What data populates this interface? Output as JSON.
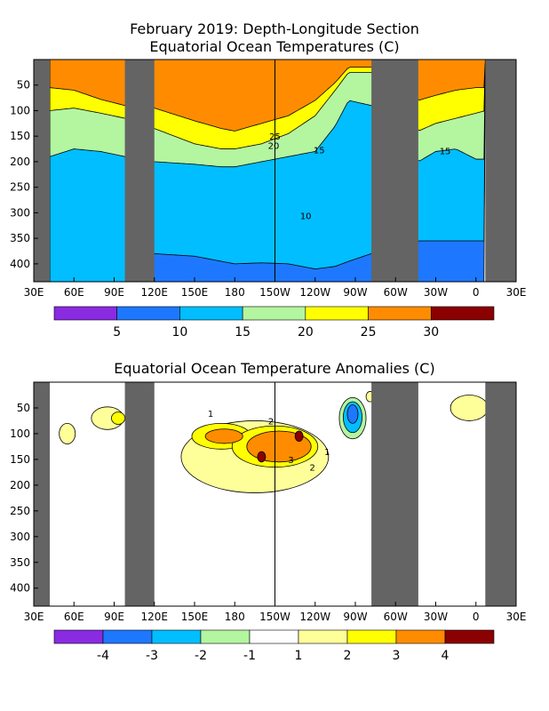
{
  "chart_data": [
    {
      "type": "heatmap",
      "title": "February 2019: Depth-Longitude Section",
      "subtitle": "Equatorial Ocean Temperatures (C)",
      "xlabel": "",
      "ylabel": "",
      "x_ticks": [
        "30E",
        "60E",
        "90E",
        "120E",
        "150E",
        "180",
        "150W",
        "120W",
        "90W",
        "60W",
        "30W",
        "0",
        "30E"
      ],
      "x_range_deg_east": [
        30,
        390
      ],
      "y_ticks": [
        50,
        100,
        150,
        200,
        250,
        300,
        350,
        400
      ],
      "y_range_m": [
        0,
        435
      ],
      "land_gaps_deg_east": [
        [
          30,
          42
        ],
        [
          98,
          120
        ],
        [
          282,
          317
        ],
        [
          367,
          390
        ]
      ],
      "colorbar": {
        "labels": [
          "5",
          "10",
          "15",
          "20",
          "25",
          "30"
        ],
        "bins": [
          0,
          5,
          10,
          15,
          20,
          25,
          30,
          35
        ],
        "colors": [
          "#8a2be2",
          "#1e78ff",
          "#00beff",
          "#b4f5a0",
          "#ffff00",
          "#ff8c00",
          "#8b0000"
        ]
      },
      "contour_labels": [
        "25",
        "20",
        "15",
        "15",
        "10"
      ],
      "layers": [
        {
          "range": "25-30",
          "depth_bottom": {
            "lon": [
              42,
              60,
              80,
              98,
              120,
              150,
              170,
              180,
              200,
              220,
              240,
              255,
              265,
              282,
              317,
              330,
              345,
              360,
              367
            ],
            "depth_m": [
              55,
              60,
              78,
              90,
              95,
              120,
              135,
              140,
              125,
              110,
              80,
              45,
              15,
              15,
              80,
              70,
              60,
              55,
              55
            ]
          }
        },
        {
          "range": "20-25",
          "depth_bottom": {
            "lon": [
              42,
              60,
              80,
              98,
              120,
              150,
              170,
              180,
              200,
              220,
              240,
              255,
              265,
              282,
              317,
              330,
              345,
              360,
              367
            ],
            "depth_m": [
              100,
              95,
              105,
              115,
              135,
              165,
              175,
              175,
              165,
              145,
              110,
              60,
              25,
              25,
              140,
              125,
              115,
              105,
              100
            ]
          }
        },
        {
          "range": "15-20",
          "depth_bottom": {
            "lon": [
              42,
              60,
              80,
              98,
              120,
              150,
              170,
              180,
              200,
              220,
              240,
              255,
              265,
              282,
              317,
              330,
              345,
              360,
              367
            ],
            "depth_m": [
              190,
              175,
              180,
              190,
              200,
              205,
              210,
              210,
              200,
              190,
              180,
              130,
              80,
              90,
              200,
              180,
              175,
              195,
              195
            ]
          }
        },
        {
          "range": "10-15",
          "depth_bottom": {
            "lon": [
              42,
              60,
              80,
              98,
              120,
              150,
              170,
              180,
              200,
              220,
              240,
              255,
              265,
              282,
              317,
              330,
              345,
              360,
              367
            ],
            "depth_m": [
              435,
              435,
              435,
              435,
              380,
              385,
              395,
              400,
              398,
              400,
              410,
              405,
              395,
              380,
              355,
              355,
              355,
              355,
              355
            ]
          }
        },
        {
          "range": "5-10",
          "depth_bottom": {
            "lon": [
              42,
              367
            ],
            "depth_m": [
              435,
              435
            ]
          }
        }
      ]
    },
    {
      "type": "heatmap",
      "title": "Equatorial Ocean Temperature Anomalies (C)",
      "xlabel": "",
      "ylabel": "",
      "x_ticks": [
        "30E",
        "60E",
        "90E",
        "120E",
        "150E",
        "180",
        "150W",
        "120W",
        "90W",
        "60W",
        "30W",
        "0",
        "30E"
      ],
      "x_range_deg_east": [
        30,
        390
      ],
      "y_ticks": [
        50,
        100,
        150,
        200,
        250,
        300,
        350,
        400
      ],
      "y_range_m": [
        0,
        435
      ],
      "land_gaps_deg_east": [
        [
          30,
          42
        ],
        [
          98,
          120
        ],
        [
          282,
          317
        ],
        [
          367,
          390
        ]
      ],
      "colorbar": {
        "labels": [
          "-4",
          "-3",
          "-2",
          "-1",
          "1",
          "2",
          "3",
          "4"
        ],
        "bins": [
          -5,
          -4,
          -3,
          -2,
          -1,
          1,
          2,
          3,
          4,
          5
        ],
        "colors": [
          "#8a2be2",
          "#1e78ff",
          "#00beff",
          "#b4f5a0",
          "#ffffff",
          "#ffff99",
          "#ffff00",
          "#ff8c00",
          "#8b0000"
        ]
      },
      "contour_labels": [
        "2",
        "3",
        "2",
        "1",
        "1"
      ],
      "anomaly_regions": [
        {
          "value_class": "1 to 2",
          "lon": 195,
          "depth_m": 145,
          "rx_deg": 55,
          "ry_m": 70
        },
        {
          "value_class": "1 to 2",
          "lon": 85,
          "depth_m": 70,
          "rx_deg": 12,
          "ry_m": 22
        },
        {
          "value_class": "1 to 2",
          "lon": 355,
          "depth_m": 50,
          "rx_deg": 14,
          "ry_m": 25
        },
        {
          "value_class": "1 to 2",
          "lon": 55,
          "depth_m": 100,
          "rx_deg": 6,
          "ry_m": 20
        },
        {
          "value_class": "2 to 3",
          "lon": 170,
          "depth_m": 105,
          "rx_deg": 22,
          "ry_m": 25
        },
        {
          "value_class": "2 to 3",
          "lon": 210,
          "depth_m": 125,
          "rx_deg": 32,
          "ry_m": 40
        },
        {
          "value_class": "3 to 4",
          "lon": 172,
          "depth_m": 105,
          "rx_deg": 14,
          "ry_m": 14
        },
        {
          "value_class": "3 to 4",
          "lon": 213,
          "depth_m": 125,
          "rx_deg": 24,
          "ry_m": 30
        },
        {
          "value_class": "above 4",
          "lon": 200,
          "depth_m": 145,
          "rx_deg": 3,
          "ry_m": 10
        },
        {
          "value_class": "above 4",
          "lon": 228,
          "depth_m": 105,
          "rx_deg": 3,
          "ry_m": 10
        },
        {
          "value_class": "2 to 3",
          "lon": 93,
          "depth_m": 70,
          "rx_deg": 5,
          "ry_m": 12
        },
        {
          "value_class": "-2 to -1",
          "lon": 268,
          "depth_m": 70,
          "rx_deg": 10,
          "ry_m": 40
        },
        {
          "value_class": "-3 to -2",
          "lon": 268,
          "depth_m": 68,
          "rx_deg": 7,
          "ry_m": 30
        },
        {
          "value_class": "-4 to -3",
          "lon": 268,
          "depth_m": 62,
          "rx_deg": 4,
          "ry_m": 18
        },
        {
          "value_class": "1 to 2",
          "lon": 281,
          "depth_m": 28,
          "rx_deg": 3,
          "ry_m": 10
        }
      ]
    }
  ]
}
